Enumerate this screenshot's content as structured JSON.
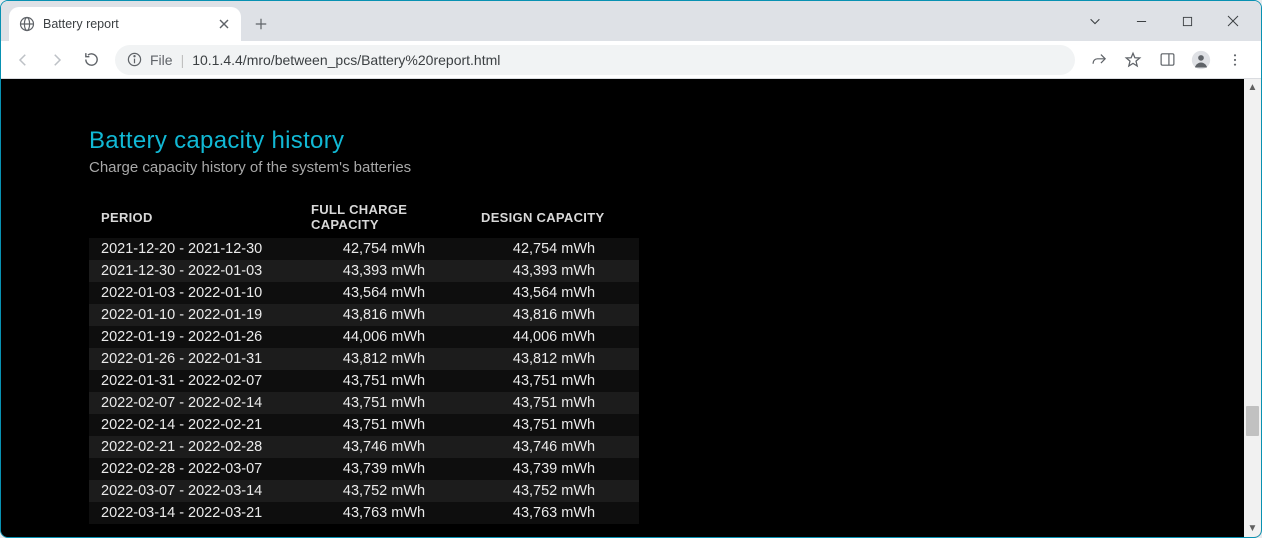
{
  "browser": {
    "tab_title": "Battery report",
    "url_file_label": "File",
    "url": "10.1.4.4/mro/between_pcs/Battery%20report.html"
  },
  "report": {
    "heading": "Battery capacity history",
    "heading_color": "#11b8d4",
    "subtitle": "Charge capacity history of the system's batteries",
    "background_color": "#000000",
    "text_color": "#eaeaea",
    "row_stripe_colors": [
      "#1c1c1c",
      "#0e0e0e"
    ],
    "columns": [
      "PERIOD",
      "FULL CHARGE CAPACITY",
      "DESIGN CAPACITY"
    ],
    "rows": [
      {
        "period": "2021-12-20 - 2021-12-30",
        "full": "42,754 mWh",
        "design": "42,754 mWh"
      },
      {
        "period": "2021-12-30 - 2022-01-03",
        "full": "43,393 mWh",
        "design": "43,393 mWh"
      },
      {
        "period": "2022-01-03 - 2022-01-10",
        "full": "43,564 mWh",
        "design": "43,564 mWh"
      },
      {
        "period": "2022-01-10 - 2022-01-19",
        "full": "43,816 mWh",
        "design": "43,816 mWh"
      },
      {
        "period": "2022-01-19 - 2022-01-26",
        "full": "44,006 mWh",
        "design": "44,006 mWh"
      },
      {
        "period": "2022-01-26 - 2022-01-31",
        "full": "43,812 mWh",
        "design": "43,812 mWh"
      },
      {
        "period": "2022-01-31 - 2022-02-07",
        "full": "43,751 mWh",
        "design": "43,751 mWh"
      },
      {
        "period": "2022-02-07 - 2022-02-14",
        "full": "43,751 mWh",
        "design": "43,751 mWh"
      },
      {
        "period": "2022-02-14 - 2022-02-21",
        "full": "43,751 mWh",
        "design": "43,751 mWh"
      },
      {
        "period": "2022-02-21 - 2022-02-28",
        "full": "43,746 mWh",
        "design": "43,746 mWh"
      },
      {
        "period": "2022-02-28 - 2022-03-07",
        "full": "43,739 mWh",
        "design": "43,739 mWh"
      },
      {
        "period": "2022-03-07 - 2022-03-14",
        "full": "43,752 mWh",
        "design": "43,752 mWh"
      },
      {
        "period": "2022-03-14 - 2022-03-21",
        "full": "43,763 mWh",
        "design": "43,763 mWh"
      }
    ]
  }
}
